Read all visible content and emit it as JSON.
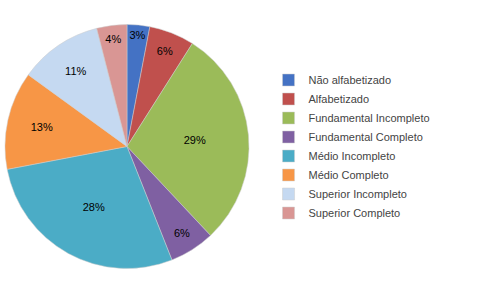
{
  "chart_data": {
    "type": "pie",
    "categories": [
      "Não alfabetizado",
      "Alfabetizado",
      "Fundamental Incompleto",
      "Fundamental Completo",
      "Médio Incompleto",
      "Médio Completo",
      "Superior Incompleto",
      "Superior Completo"
    ],
    "values": [
      3,
      6,
      29,
      6,
      28,
      13,
      11,
      4
    ],
    "value_labels": [
      "3%",
      "6%",
      "29%",
      "6%",
      "28%",
      "13%",
      "11%",
      "4%"
    ],
    "colors": [
      "#4472C4",
      "#C0504D",
      "#9BBB59",
      "#7F60A2",
      "#4BACC6",
      "#F79646",
      "#C5D9F1",
      "#D99694"
    ],
    "data_labels": true,
    "legend": "right"
  }
}
